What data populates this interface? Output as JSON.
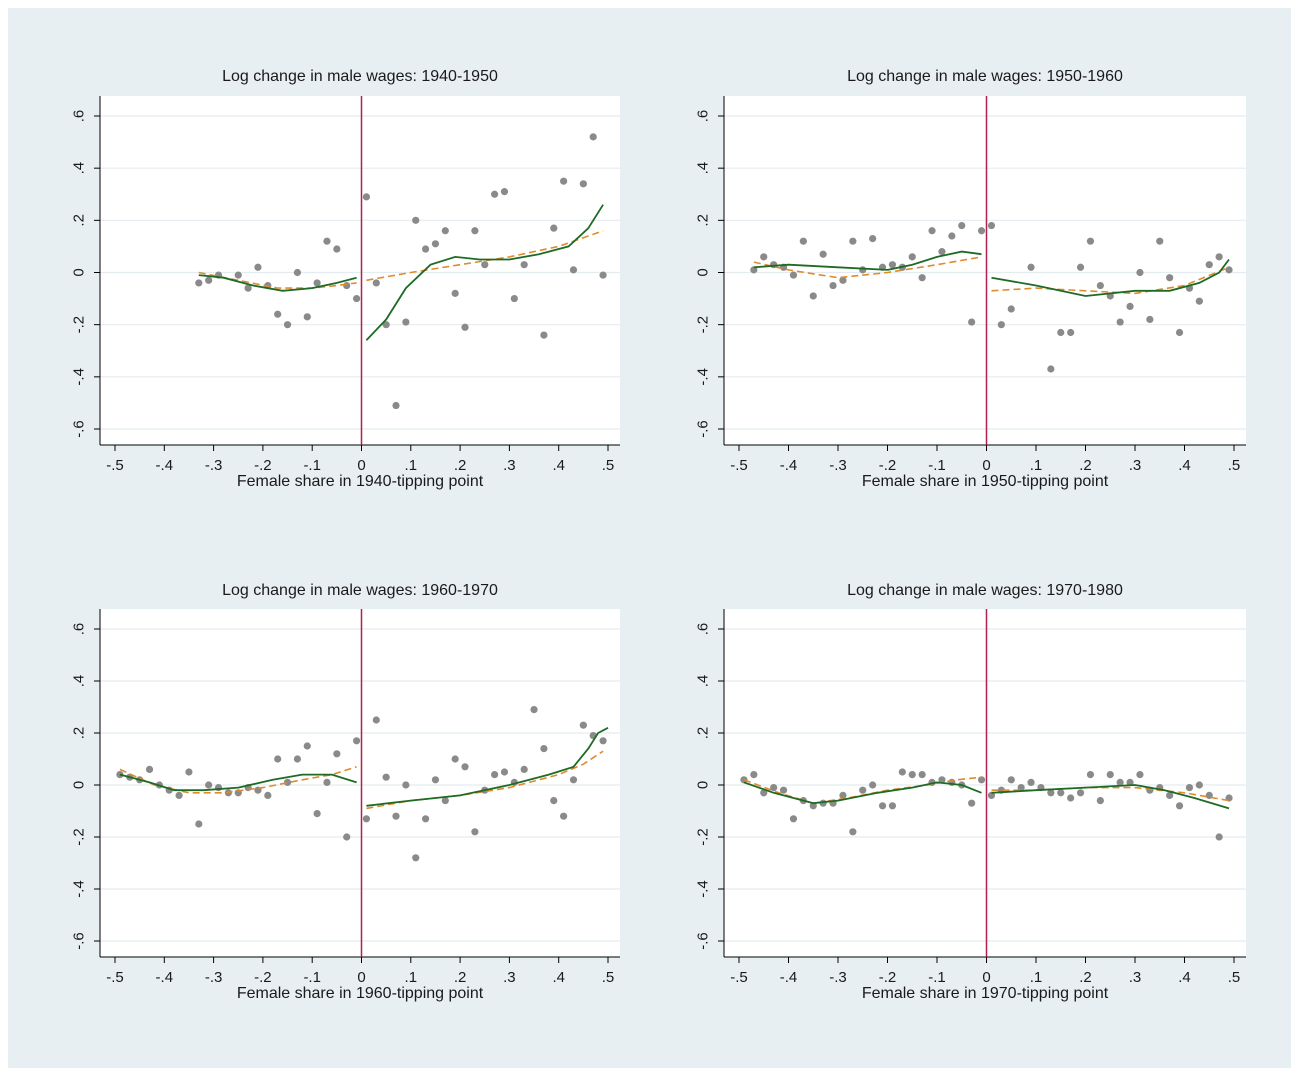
{
  "colors": {
    "outer_bg": "#e7eff3",
    "plot_bg": "#ffffff",
    "grid": "#e4ecef",
    "axis": "#000000",
    "text": "#1a1a1a",
    "points": "#8a8a8a",
    "cutoff_line": "#b3204f",
    "lowess_fit": "#1d6b24",
    "poly_fit": "#e08a2e"
  },
  "chart_data": [
    {
      "type": "scatter",
      "title": "Log change in male wages: 1940-1950",
      "xlabel": "Female share in 1940-tipping point",
      "ylabel": "",
      "xlim": [
        -0.5,
        0.5
      ],
      "ylim": [
        -0.6,
        0.6
      ],
      "xticks": [
        "-.5",
        "-.4",
        "-.3",
        "-.2",
        "-.1",
        "0",
        ".1",
        ".2",
        ".3",
        ".4",
        ".5"
      ],
      "yticks": [
        "-.6",
        "-.4",
        "-.2",
        "0",
        ".2",
        ".4",
        ".6"
      ],
      "cutoff": 0,
      "grid": true,
      "points": [
        [
          -0.33,
          -0.04
        ],
        [
          -0.31,
          -0.03
        ],
        [
          -0.29,
          -0.01
        ],
        [
          -0.25,
          -0.01
        ],
        [
          -0.23,
          -0.06
        ],
        [
          -0.21,
          0.02
        ],
        [
          -0.19,
          -0.05
        ],
        [
          -0.17,
          -0.16
        ],
        [
          -0.15,
          -0.2
        ],
        [
          -0.13,
          0.0
        ],
        [
          -0.11,
          -0.17
        ],
        [
          -0.09,
          -0.04
        ],
        [
          -0.07,
          0.12
        ],
        [
          -0.05,
          0.09
        ],
        [
          -0.03,
          -0.05
        ],
        [
          -0.01,
          -0.1
        ],
        [
          0.01,
          0.29
        ],
        [
          0.03,
          -0.04
        ],
        [
          0.05,
          -0.2
        ],
        [
          0.07,
          -0.51
        ],
        [
          0.09,
          -0.19
        ],
        [
          0.11,
          0.2
        ],
        [
          0.13,
          0.09
        ],
        [
          0.15,
          0.11
        ],
        [
          0.17,
          0.16
        ],
        [
          0.19,
          -0.08
        ],
        [
          0.21,
          -0.21
        ],
        [
          0.23,
          0.16
        ],
        [
          0.25,
          0.03
        ],
        [
          0.27,
          0.3
        ],
        [
          0.29,
          0.31
        ],
        [
          0.31,
          -0.1
        ],
        [
          0.33,
          0.03
        ],
        [
          0.37,
          -0.24
        ],
        [
          0.39,
          0.17
        ],
        [
          0.41,
          0.35
        ],
        [
          0.43,
          0.01
        ],
        [
          0.45,
          0.34
        ],
        [
          0.47,
          0.52
        ],
        [
          0.49,
          -0.01
        ]
      ],
      "lowess_left": [
        [
          -0.33,
          -0.01
        ],
        [
          -0.28,
          -0.02
        ],
        [
          -0.22,
          -0.05
        ],
        [
          -0.16,
          -0.07
        ],
        [
          -0.1,
          -0.06
        ],
        [
          -0.05,
          -0.04
        ],
        [
          -0.01,
          -0.02
        ]
      ],
      "lowess_right": [
        [
          0.01,
          -0.26
        ],
        [
          0.05,
          -0.18
        ],
        [
          0.09,
          -0.06
        ],
        [
          0.14,
          0.03
        ],
        [
          0.19,
          0.06
        ],
        [
          0.24,
          0.05
        ],
        [
          0.3,
          0.05
        ],
        [
          0.36,
          0.07
        ],
        [
          0.42,
          0.1
        ],
        [
          0.46,
          0.17
        ],
        [
          0.49,
          0.26
        ]
      ],
      "poly_left": [
        [
          -0.33,
          0.0
        ],
        [
          -0.25,
          -0.03
        ],
        [
          -0.17,
          -0.06
        ],
        [
          -0.1,
          -0.06
        ],
        [
          -0.05,
          -0.05
        ],
        [
          -0.01,
          -0.04
        ]
      ],
      "poly_right": [
        [
          0.01,
          -0.03
        ],
        [
          0.1,
          0.0
        ],
        [
          0.2,
          0.03
        ],
        [
          0.3,
          0.06
        ],
        [
          0.4,
          0.1
        ],
        [
          0.49,
          0.16
        ]
      ]
    },
    {
      "type": "scatter",
      "title": "Log change in male wages: 1950-1960",
      "xlabel": "Female share in 1950-tipping point",
      "ylabel": "",
      "xlim": [
        -0.5,
        0.5
      ],
      "ylim": [
        -0.6,
        0.6
      ],
      "xticks": [
        "-.5",
        "-.4",
        "-.3",
        "-.2",
        "-.1",
        "0",
        ".1",
        ".2",
        ".3",
        ".4",
        ".5"
      ],
      "yticks": [
        "-.6",
        "-.4",
        "-.2",
        "0",
        ".2",
        ".4",
        ".6"
      ],
      "cutoff": 0,
      "grid": true,
      "points": [
        [
          -0.47,
          0.01
        ],
        [
          -0.45,
          0.06
        ],
        [
          -0.43,
          0.03
        ],
        [
          -0.41,
          0.02
        ],
        [
          -0.39,
          -0.01
        ],
        [
          -0.37,
          0.12
        ],
        [
          -0.35,
          -0.09
        ],
        [
          -0.33,
          0.07
        ],
        [
          -0.31,
          -0.05
        ],
        [
          -0.29,
          -0.03
        ],
        [
          -0.27,
          0.12
        ],
        [
          -0.25,
          0.01
        ],
        [
          -0.23,
          0.13
        ],
        [
          -0.21,
          0.02
        ],
        [
          -0.19,
          0.03
        ],
        [
          -0.17,
          0.02
        ],
        [
          -0.15,
          0.06
        ],
        [
          -0.13,
          -0.02
        ],
        [
          -0.11,
          0.16
        ],
        [
          -0.09,
          0.08
        ],
        [
          -0.07,
          0.14
        ],
        [
          -0.05,
          0.18
        ],
        [
          -0.03,
          -0.19
        ],
        [
          -0.01,
          0.16
        ],
        [
          0.01,
          0.18
        ],
        [
          0.03,
          -0.2
        ],
        [
          0.05,
          -0.14
        ],
        [
          0.09,
          0.02
        ],
        [
          0.13,
          -0.37
        ],
        [
          0.15,
          -0.23
        ],
        [
          0.17,
          -0.23
        ],
        [
          0.19,
          0.02
        ],
        [
          0.21,
          0.12
        ],
        [
          0.23,
          -0.05
        ],
        [
          0.25,
          -0.09
        ],
        [
          0.27,
          -0.19
        ],
        [
          0.29,
          -0.13
        ],
        [
          0.31,
          0.0
        ],
        [
          0.33,
          -0.18
        ],
        [
          0.35,
          0.12
        ],
        [
          0.37,
          -0.02
        ],
        [
          0.39,
          -0.23
        ],
        [
          0.41,
          -0.06
        ],
        [
          0.43,
          -0.11
        ],
        [
          0.45,
          0.03
        ],
        [
          0.47,
          0.06
        ],
        [
          0.49,
          0.01
        ]
      ],
      "lowess_left": [
        [
          -0.47,
          0.02
        ],
        [
          -0.4,
          0.03
        ],
        [
          -0.3,
          0.02
        ],
        [
          -0.2,
          0.01
        ],
        [
          -0.15,
          0.03
        ],
        [
          -0.1,
          0.06
        ],
        [
          -0.05,
          0.08
        ],
        [
          -0.01,
          0.07
        ]
      ],
      "lowess_right": [
        [
          0.01,
          -0.02
        ],
        [
          0.1,
          -0.05
        ],
        [
          0.2,
          -0.09
        ],
        [
          0.3,
          -0.07
        ],
        [
          0.37,
          -0.07
        ],
        [
          0.43,
          -0.04
        ],
        [
          0.47,
          0.0
        ],
        [
          0.49,
          0.05
        ]
      ],
      "poly_left": [
        [
          -0.47,
          0.04
        ],
        [
          -0.4,
          0.01
        ],
        [
          -0.3,
          -0.02
        ],
        [
          -0.2,
          0.0
        ],
        [
          -0.1,
          0.03
        ],
        [
          -0.01,
          0.06
        ]
      ],
      "poly_right": [
        [
          0.01,
          -0.07
        ],
        [
          0.1,
          -0.06
        ],
        [
          0.2,
          -0.07
        ],
        [
          0.3,
          -0.08
        ],
        [
          0.4,
          -0.05
        ],
        [
          0.49,
          0.02
        ]
      ]
    },
    {
      "type": "scatter",
      "title": "Log change in male wages: 1960-1970",
      "xlabel": "Female share in 1960-tipping point",
      "ylabel": "",
      "xlim": [
        -0.5,
        0.5
      ],
      "ylim": [
        -0.6,
        0.6
      ],
      "xticks": [
        "-.5",
        "-.4",
        "-.3",
        "-.2",
        "-.1",
        "0",
        ".1",
        ".2",
        ".3",
        ".4",
        ".5"
      ],
      "yticks": [
        "-.6",
        "-.4",
        "-.2",
        "0",
        ".2",
        ".4",
        ".6"
      ],
      "cutoff": 0,
      "grid": true,
      "points": [
        [
          -0.49,
          0.04
        ],
        [
          -0.47,
          0.03
        ],
        [
          -0.45,
          0.02
        ],
        [
          -0.43,
          0.06
        ],
        [
          -0.41,
          0.0
        ],
        [
          -0.39,
          -0.02
        ],
        [
          -0.37,
          -0.04
        ],
        [
          -0.35,
          0.05
        ],
        [
          -0.33,
          -0.15
        ],
        [
          -0.31,
          0.0
        ],
        [
          -0.29,
          -0.01
        ],
        [
          -0.27,
          -0.03
        ],
        [
          -0.25,
          -0.03
        ],
        [
          -0.23,
          -0.01
        ],
        [
          -0.21,
          -0.02
        ],
        [
          -0.19,
          -0.04
        ],
        [
          -0.17,
          0.1
        ],
        [
          -0.15,
          0.01
        ],
        [
          -0.13,
          0.1
        ],
        [
          -0.11,
          0.15
        ],
        [
          -0.09,
          -0.11
        ],
        [
          -0.07,
          0.01
        ],
        [
          -0.05,
          0.12
        ],
        [
          -0.03,
          -0.2
        ],
        [
          -0.01,
          0.17
        ],
        [
          0.01,
          -0.13
        ],
        [
          0.03,
          0.25
        ],
        [
          0.05,
          0.03
        ],
        [
          0.07,
          -0.12
        ],
        [
          0.09,
          0.0
        ],
        [
          0.11,
          -0.28
        ],
        [
          0.13,
          -0.13
        ],
        [
          0.15,
          0.02
        ],
        [
          0.17,
          -0.06
        ],
        [
          0.19,
          0.1
        ],
        [
          0.21,
          0.07
        ],
        [
          0.23,
          -0.18
        ],
        [
          0.25,
          -0.02
        ],
        [
          0.27,
          0.04
        ],
        [
          0.29,
          0.05
        ],
        [
          0.31,
          0.01
        ],
        [
          0.33,
          0.06
        ],
        [
          0.35,
          0.29
        ],
        [
          0.37,
          0.14
        ],
        [
          0.39,
          -0.06
        ],
        [
          0.41,
          -0.12
        ],
        [
          0.43,
          0.02
        ],
        [
          0.45,
          0.23
        ],
        [
          0.47,
          0.19
        ],
        [
          0.49,
          0.17
        ]
      ],
      "lowess_left": [
        [
          -0.49,
          0.04
        ],
        [
          -0.43,
          0.01
        ],
        [
          -0.38,
          -0.02
        ],
        [
          -0.32,
          -0.02
        ],
        [
          -0.25,
          -0.01
        ],
        [
          -0.18,
          0.02
        ],
        [
          -0.12,
          0.04
        ],
        [
          -0.06,
          0.04
        ],
        [
          -0.01,
          0.01
        ]
      ],
      "lowess_right": [
        [
          0.01,
          -0.08
        ],
        [
          0.1,
          -0.06
        ],
        [
          0.2,
          -0.04
        ],
        [
          0.3,
          0.0
        ],
        [
          0.38,
          0.04
        ],
        [
          0.43,
          0.07
        ],
        [
          0.46,
          0.14
        ],
        [
          0.48,
          0.2
        ],
        [
          0.5,
          0.22
        ]
      ],
      "poly_left": [
        [
          -0.49,
          0.06
        ],
        [
          -0.42,
          0.0
        ],
        [
          -0.35,
          -0.03
        ],
        [
          -0.28,
          -0.03
        ],
        [
          -0.2,
          -0.01
        ],
        [
          -0.12,
          0.02
        ],
        [
          -0.06,
          0.04
        ],
        [
          -0.01,
          0.07
        ]
      ],
      "poly_right": [
        [
          0.01,
          -0.09
        ],
        [
          0.1,
          -0.06
        ],
        [
          0.2,
          -0.04
        ],
        [
          0.3,
          -0.01
        ],
        [
          0.4,
          0.04
        ],
        [
          0.45,
          0.08
        ],
        [
          0.49,
          0.13
        ]
      ]
    },
    {
      "type": "scatter",
      "title": "Log change in male wages: 1970-1980",
      "xlabel": "Female share in 1970-tipping point",
      "ylabel": "",
      "xlim": [
        -0.5,
        0.5
      ],
      "ylim": [
        -0.6,
        0.6
      ],
      "xticks": [
        "-.5",
        "-.4",
        "-.3",
        "-.2",
        "-.1",
        "0",
        ".1",
        ".2",
        ".3",
        ".4",
        ".5"
      ],
      "yticks": [
        "-.6",
        "-.4",
        "-.2",
        "0",
        ".2",
        ".4",
        ".6"
      ],
      "cutoff": 0,
      "grid": true,
      "points": [
        [
          -0.49,
          0.02
        ],
        [
          -0.47,
          0.04
        ],
        [
          -0.45,
          -0.03
        ],
        [
          -0.43,
          -0.01
        ],
        [
          -0.41,
          -0.02
        ],
        [
          -0.39,
          -0.13
        ],
        [
          -0.37,
          -0.06
        ],
        [
          -0.35,
          -0.08
        ],
        [
          -0.33,
          -0.07
        ],
        [
          -0.31,
          -0.07
        ],
        [
          -0.29,
          -0.04
        ],
        [
          -0.27,
          -0.18
        ],
        [
          -0.25,
          -0.02
        ],
        [
          -0.23,
          0.0
        ],
        [
          -0.21,
          -0.08
        ],
        [
          -0.19,
          -0.08
        ],
        [
          -0.17,
          0.05
        ],
        [
          -0.15,
          0.04
        ],
        [
          -0.13,
          0.04
        ],
        [
          -0.11,
          0.01
        ],
        [
          -0.09,
          0.02
        ],
        [
          -0.07,
          0.01
        ],
        [
          -0.05,
          0.0
        ],
        [
          -0.03,
          -0.07
        ],
        [
          -0.01,
          0.02
        ],
        [
          0.01,
          -0.04
        ],
        [
          0.03,
          -0.02
        ],
        [
          0.05,
          0.02
        ],
        [
          0.07,
          -0.01
        ],
        [
          0.09,
          0.01
        ],
        [
          0.11,
          -0.01
        ],
        [
          0.13,
          -0.03
        ],
        [
          0.15,
          -0.03
        ],
        [
          0.17,
          -0.05
        ],
        [
          0.19,
          -0.03
        ],
        [
          0.21,
          0.04
        ],
        [
          0.23,
          -0.06
        ],
        [
          0.25,
          0.04
        ],
        [
          0.27,
          0.01
        ],
        [
          0.29,
          0.01
        ],
        [
          0.31,
          0.04
        ],
        [
          0.33,
          -0.02
        ],
        [
          0.35,
          -0.01
        ],
        [
          0.37,
          -0.04
        ],
        [
          0.39,
          -0.08
        ],
        [
          0.41,
          -0.01
        ],
        [
          0.43,
          0.0
        ],
        [
          0.45,
          -0.04
        ],
        [
          0.47,
          -0.2
        ],
        [
          0.49,
          -0.05
        ]
      ],
      "lowess_left": [
        [
          -0.49,
          0.01
        ],
        [
          -0.43,
          -0.03
        ],
        [
          -0.35,
          -0.07
        ],
        [
          -0.3,
          -0.06
        ],
        [
          -0.22,
          -0.03
        ],
        [
          -0.15,
          -0.01
        ],
        [
          -0.1,
          0.01
        ],
        [
          -0.05,
          0.0
        ],
        [
          -0.01,
          -0.03
        ]
      ],
      "lowess_right": [
        [
          0.01,
          -0.03
        ],
        [
          0.1,
          -0.02
        ],
        [
          0.2,
          -0.01
        ],
        [
          0.3,
          0.0
        ],
        [
          0.36,
          -0.02
        ],
        [
          0.42,
          -0.05
        ],
        [
          0.49,
          -0.09
        ]
      ],
      "poly_left": [
        [
          -0.49,
          0.02
        ],
        [
          -0.42,
          -0.03
        ],
        [
          -0.35,
          -0.07
        ],
        [
          -0.28,
          -0.05
        ],
        [
          -0.2,
          -0.02
        ],
        [
          -0.12,
          0.0
        ],
        [
          -0.06,
          0.02
        ],
        [
          -0.01,
          0.03
        ]
      ],
      "poly_right": [
        [
          0.01,
          -0.02
        ],
        [
          0.1,
          -0.02
        ],
        [
          0.2,
          -0.01
        ],
        [
          0.3,
          -0.01
        ],
        [
          0.4,
          -0.03
        ],
        [
          0.49,
          -0.06
        ]
      ]
    }
  ]
}
